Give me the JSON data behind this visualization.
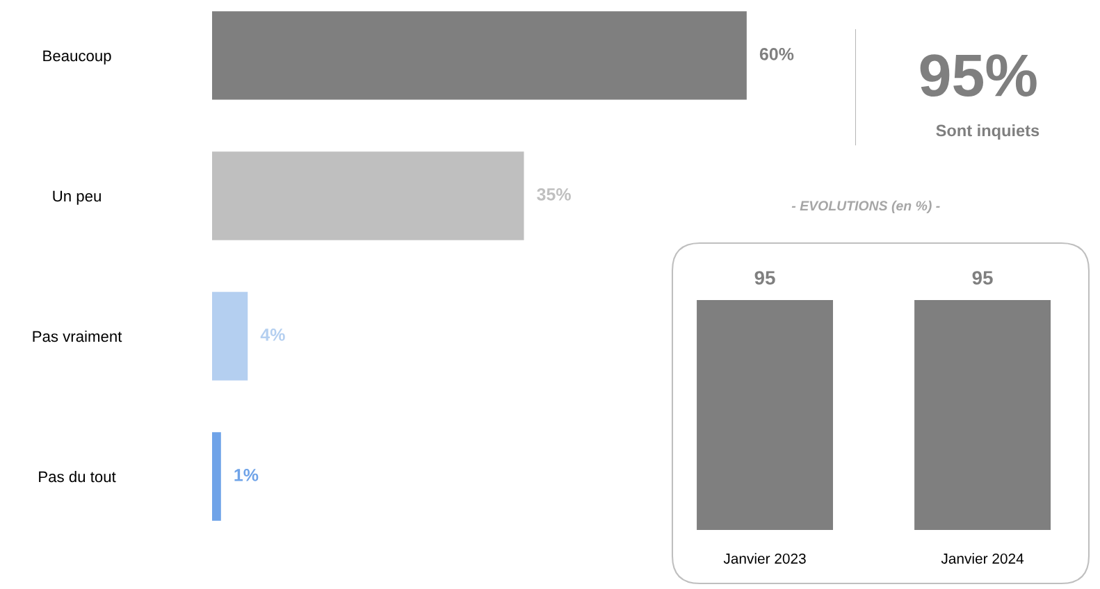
{
  "chart_data": [
    {
      "type": "bar",
      "orientation": "horizontal",
      "categories": [
        "Beaucoup",
        "Un peu",
        "Pas vraiment",
        "Pas du tout"
      ],
      "values": [
        60,
        35,
        4,
        1
      ],
      "colors": [
        "#7f7f7f",
        "#bfbfbf",
        "#b4cff0",
        "#6fa3e8"
      ],
      "value_labels": [
        "60%",
        "35%",
        "4%",
        "1%"
      ],
      "xlim": [
        0,
        70
      ],
      "tick_labels": "y",
      "grid": false,
      "legend": false
    },
    {
      "type": "other",
      "annotations": [
        "95%",
        "Sont inquiets"
      ]
    },
    {
      "type": "bar",
      "title": "- EVOLUTIONS (en %) -",
      "categories": [
        "Janvier 2023",
        "Janvier 2024"
      ],
      "values": [
        95,
        95
      ],
      "color": "#7f7f7f",
      "data_labels": true,
      "tick_labels": "x",
      "grid": false,
      "legend": false
    }
  ]
}
